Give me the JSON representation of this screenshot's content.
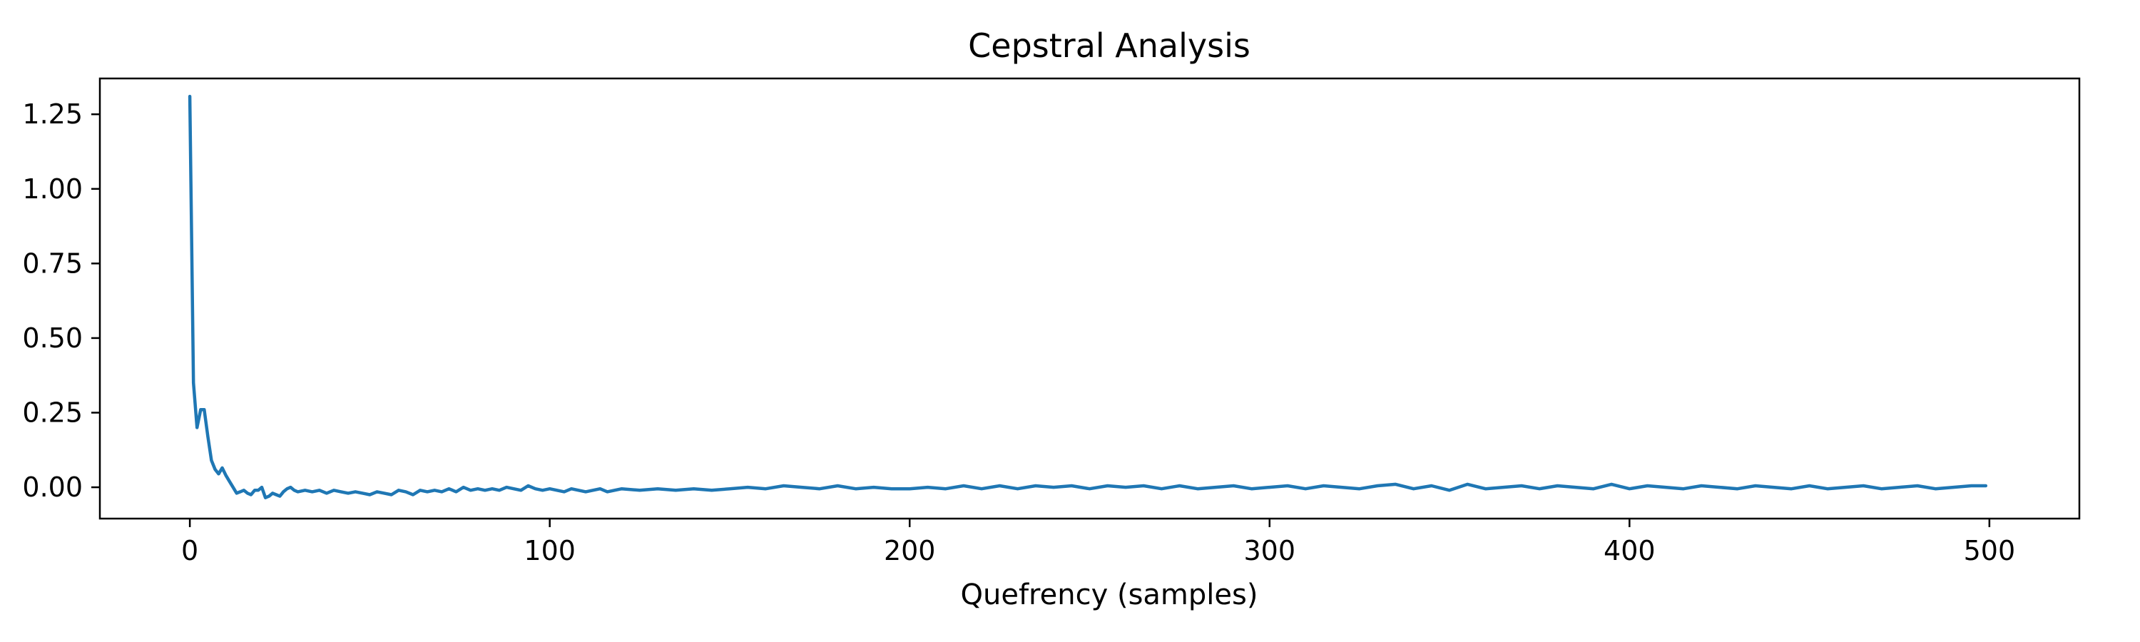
{
  "chart_data": {
    "type": "line",
    "title": "Cepstral Analysis",
    "xlabel": "Quefrency (samples)",
    "ylabel": "",
    "xlim": [
      -25,
      525
    ],
    "ylim": [
      -0.105,
      1.37
    ],
    "xticks": [
      0,
      100,
      200,
      300,
      400,
      500
    ],
    "xtick_labels": [
      "0",
      "100",
      "200",
      "300",
      "400",
      "500"
    ],
    "yticks": [
      0.0,
      0.25,
      0.5,
      0.75,
      1.0,
      1.25
    ],
    "ytick_labels": [
      "0.00",
      "0.25",
      "0.50",
      "0.75",
      "1.00",
      "1.25"
    ],
    "grid": false,
    "legend": "none",
    "series": [
      {
        "color": "#1f77b4",
        "x": [
          0,
          1,
          2,
          3,
          4,
          5,
          6,
          7,
          8,
          9,
          10,
          11,
          12,
          13,
          14,
          15,
          16,
          17,
          18,
          19,
          20,
          21,
          22,
          23,
          24,
          25,
          26,
          27,
          28,
          29,
          30,
          32,
          34,
          36,
          38,
          40,
          42,
          44,
          46,
          48,
          50,
          52,
          54,
          56,
          58,
          60,
          62,
          64,
          66,
          68,
          70,
          72,
          74,
          76,
          78,
          80,
          82,
          84,
          86,
          88,
          90,
          92,
          94,
          96,
          98,
          100,
          102,
          104,
          106,
          108,
          110,
          112,
          114,
          116,
          118,
          120,
          125,
          130,
          135,
          140,
          145,
          150,
          155,
          160,
          165,
          170,
          175,
          180,
          185,
          190,
          195,
          200,
          205,
          210,
          215,
          220,
          225,
          230,
          235,
          240,
          245,
          250,
          255,
          260,
          265,
          270,
          275,
          280,
          285,
          290,
          295,
          300,
          305,
          310,
          315,
          320,
          325,
          330,
          335,
          340,
          345,
          350,
          355,
          360,
          365,
          370,
          375,
          380,
          385,
          390,
          395,
          400,
          405,
          410,
          415,
          420,
          425,
          430,
          435,
          440,
          445,
          450,
          455,
          460,
          465,
          470,
          475,
          480,
          485,
          490,
          495,
          499
        ],
        "y": [
          1.31,
          0.35,
          0.2,
          0.26,
          0.26,
          0.17,
          0.09,
          0.06,
          0.045,
          0.065,
          0.04,
          0.02,
          0.0,
          -0.02,
          -0.015,
          -0.01,
          -0.02,
          -0.025,
          -0.01,
          -0.01,
          0.0,
          -0.035,
          -0.03,
          -0.02,
          -0.025,
          -0.03,
          -0.015,
          -0.005,
          0.0,
          -0.01,
          -0.015,
          -0.01,
          -0.015,
          -0.01,
          -0.02,
          -0.01,
          -0.015,
          -0.02,
          -0.015,
          -0.02,
          -0.025,
          -0.015,
          -0.02,
          -0.025,
          -0.01,
          -0.015,
          -0.025,
          -0.01,
          -0.015,
          -0.01,
          -0.015,
          -0.005,
          -0.015,
          0.0,
          -0.01,
          -0.005,
          -0.01,
          -0.005,
          -0.01,
          0.0,
          -0.005,
          -0.01,
          0.005,
          -0.005,
          -0.01,
          -0.005,
          -0.01,
          -0.015,
          -0.005,
          -0.01,
          -0.015,
          -0.01,
          -0.005,
          -0.015,
          -0.01,
          -0.005,
          -0.01,
          -0.005,
          -0.01,
          -0.005,
          -0.01,
          -0.005,
          0.0,
          -0.005,
          0.005,
          0.0,
          -0.005,
          0.005,
          -0.005,
          0.0,
          -0.005,
          -0.005,
          0.0,
          -0.005,
          0.005,
          -0.005,
          0.005,
          -0.005,
          0.005,
          0.0,
          0.005,
          -0.005,
          0.005,
          0.0,
          0.005,
          -0.005,
          0.005,
          -0.005,
          0.0,
          0.005,
          -0.005,
          0.0,
          0.005,
          -0.005,
          0.005,
          0.0,
          -0.005,
          0.005,
          0.01,
          -0.005,
          0.005,
          -0.01,
          0.01,
          -0.005,
          0.0,
          0.005,
          -0.005,
          0.005,
          0.0,
          -0.005,
          0.01,
          -0.005,
          0.005,
          0.0,
          -0.005,
          0.005,
          0.0,
          -0.005,
          0.005,
          0.0,
          -0.005,
          0.005,
          -0.005,
          0.0,
          0.005,
          -0.005,
          0.0,
          0.005,
          -0.005,
          0.0,
          0.005,
          0.005
        ]
      }
    ]
  }
}
